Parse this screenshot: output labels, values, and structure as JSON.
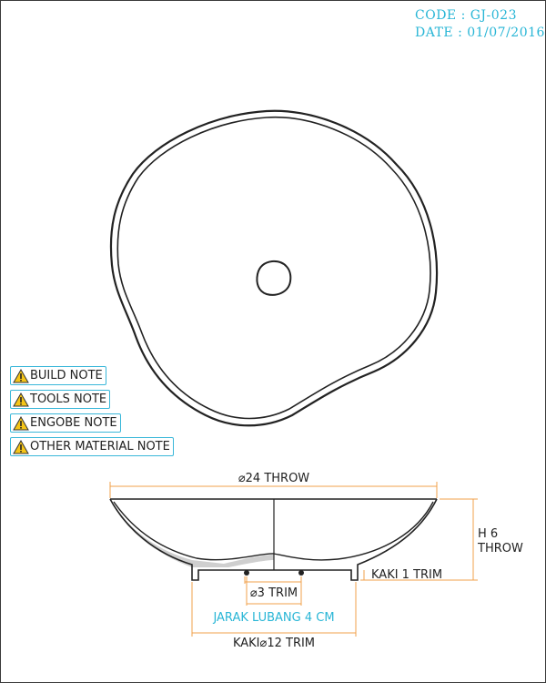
{
  "header": {
    "code": "CODE : GJ-023",
    "date": "DATE : 01/07/2016"
  },
  "notes": [
    {
      "label": "BUILD NOTE"
    },
    {
      "label": "TOOLS NOTE"
    },
    {
      "label": "ENGOBE NOTE"
    },
    {
      "label": "OTHER MATERIAL NOTE"
    }
  ],
  "dimensions": {
    "top_diameter": "⌀24 THROW",
    "height_line1": "H 6",
    "height_line2": "THROW",
    "foot_height": "KAKI 1 TRIM",
    "hole_diameter": "⌀3 TRIM",
    "hole_distance": "JARAK LUBANG 4 CM",
    "foot_diameter": "KAKI⌀12 TRIM"
  },
  "colors": {
    "accent": "#29b6d6",
    "dimension_line": "#f0a04b",
    "outline": "#222222"
  }
}
